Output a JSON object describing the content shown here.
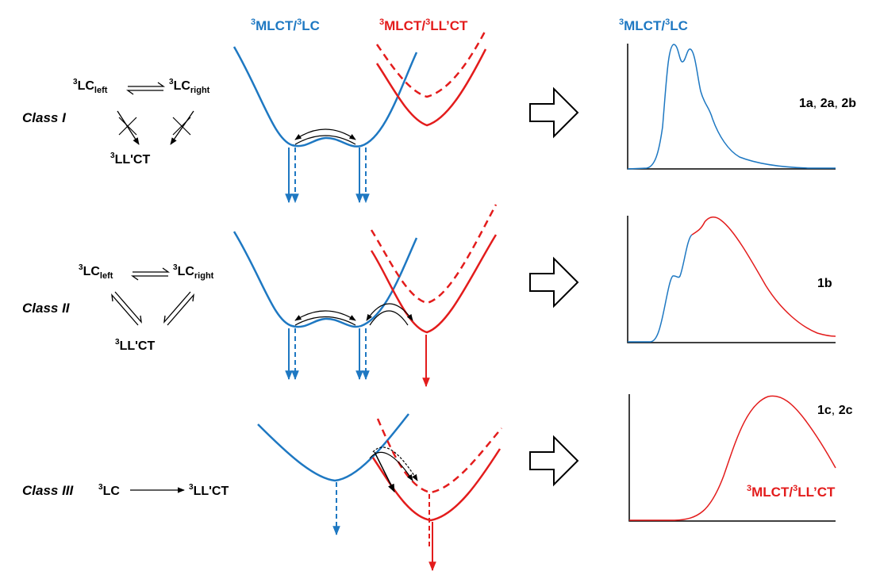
{
  "colors": {
    "blue": "#1e78c2",
    "red": "#e31c1c",
    "black": "#000000",
    "background": "#ffffff"
  },
  "header": {
    "blue_label": {
      "sup1": "3",
      "main1": "MLCT/",
      "sup2": "3",
      "main2": "LC"
    },
    "red_label": {
      "sup1": "3",
      "main1": "MLCT/",
      "sup2": "3",
      "main2": "LL’CT"
    },
    "spectrum_label": {
      "sup1": "3",
      "main1": "MLCT/",
      "sup2": "3",
      "main2": "LC"
    }
  },
  "classes": [
    {
      "name": "Class I",
      "scheme": {
        "left": {
          "sup": "3",
          "main": "LC",
          "sub": "left"
        },
        "right": {
          "sup": "3",
          "main": "LC",
          "sub": "right"
        },
        "bottom": {
          "sup": "3",
          "main": "LL'CT"
        },
        "equilibrium_to_bottom": "blocked"
      },
      "compounds": [
        {
          "text": "1a",
          "bold": true
        },
        {
          "text": ", ",
          "bold": false
        },
        {
          "text": "2a",
          "bold": true
        },
        {
          "text": ", ",
          "bold": false
        },
        {
          "text": "2b",
          "bold": true
        }
      ]
    },
    {
      "name": "Class II",
      "scheme": {
        "left": {
          "sup": "3",
          "main": "LC",
          "sub": "left"
        },
        "right": {
          "sup": "3",
          "main": "LC",
          "sub": "right"
        },
        "bottom": {
          "sup": "3",
          "main": "LL'CT"
        },
        "equilibrium_to_bottom": "reversible"
      },
      "compounds": [
        {
          "text": "1b",
          "bold": true
        }
      ]
    },
    {
      "name": "Class III",
      "scheme": {
        "left": {
          "sup": "3",
          "main": "LC"
        },
        "right": {
          "sup": "3",
          "main": "LL'CT"
        },
        "equilibrium_to_bottom": "none"
      },
      "compounds": [
        {
          "text": "1c",
          "bold": true
        },
        {
          "text": ", ",
          "bold": false
        },
        {
          "text": "2c",
          "bold": true
        }
      ],
      "spectrum_label": {
        "sup1": "3",
        "main1": "MLCT/",
        "sup2": "3",
        "main2": "LL’CT"
      }
    }
  ],
  "icons": [
    "double-well-potential-curve",
    "parabola-potential-curve",
    "emission-arrow-icon",
    "hollow-right-arrow-icon",
    "emission-spectrum-curve"
  ]
}
